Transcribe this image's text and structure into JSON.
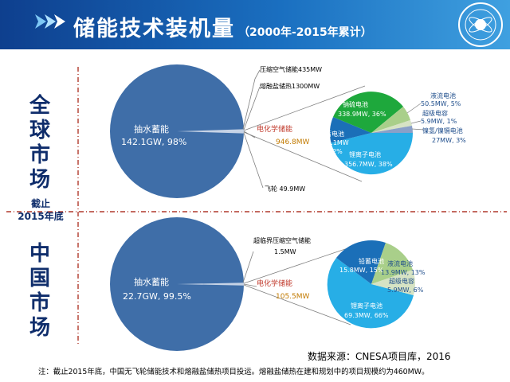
{
  "header": {
    "title": "储能技术装机量",
    "subtitle": "（2000年-2015年累计）"
  },
  "sections": {
    "global": "全球市场",
    "cutoff": [
      "截止",
      "2015年底"
    ],
    "china": "中国市场"
  },
  "global": {
    "pumped": {
      "name": "抽水蓄能",
      "value": "142.1GW, 98%"
    },
    "compressed_air": "压缩空气储能435MW",
    "molten_salt": "熔融盐储热1300MW",
    "electrochemical": {
      "name": "电化学储能",
      "value": "946.8MW"
    },
    "flywheel": "飞轮 49.9MW",
    "battery_breakdown": {
      "sodium_sulfur": {
        "name": "钠硫电池",
        "value": "338.9MW, 36%"
      },
      "lead_acid": {
        "name": "铅蓄电池",
        "value": "111.1MW",
        "pct": "12%"
      },
      "lithium_ion": {
        "name": "锂离子电池",
        "value": "356.7MW, 38%"
      },
      "flow": {
        "name": "液流电池",
        "value": "50.5MW, 5%"
      },
      "supercap": {
        "name": "超级电容",
        "value": "5.9MW, 1%"
      },
      "nickel": {
        "name": "镍氢/镍镉电池",
        "value": "27MW, 3%"
      }
    }
  },
  "china": {
    "pumped": {
      "name": "抽水蓄能",
      "value": "22.7GW, 99.5%"
    },
    "supercritical_air": {
      "name": "超临界压缩空气储能",
      "value": "1.5MW"
    },
    "electrochemical": {
      "name": "电化学储能",
      "value": "105.5MW"
    },
    "battery_breakdown": {
      "lead_acid": {
        "name": "铅蓄电池",
        "value": "15.8MW, 15%"
      },
      "flow": {
        "name": "液流电池",
        "value": "13.9MW, 13%"
      },
      "supercap": {
        "name": "超级电容",
        "value": "5.9MW, 6%"
      },
      "lithium_ion": {
        "name": "锂离子电池",
        "value": "69.3MW, 66%"
      }
    }
  },
  "footer": {
    "source": "数据来源：CNESA项目库，2016",
    "note": "注：截止2015年底，中国无飞轮储能技术和熔融盐储热项目投运。熔融盐储热在建和规划中的项目规模约为460MW。"
  },
  "colors": {
    "header": "#1a6fc0",
    "pumped": "#3f6ea8",
    "sodium_sulfur": "#1ea83c",
    "lead_acid": "#1b6fb8",
    "lithium_ion": "#27aee6",
    "flow": "#a9cf8a",
    "divider": "#b0392c",
    "section_text": "#0f2d6b"
  }
}
